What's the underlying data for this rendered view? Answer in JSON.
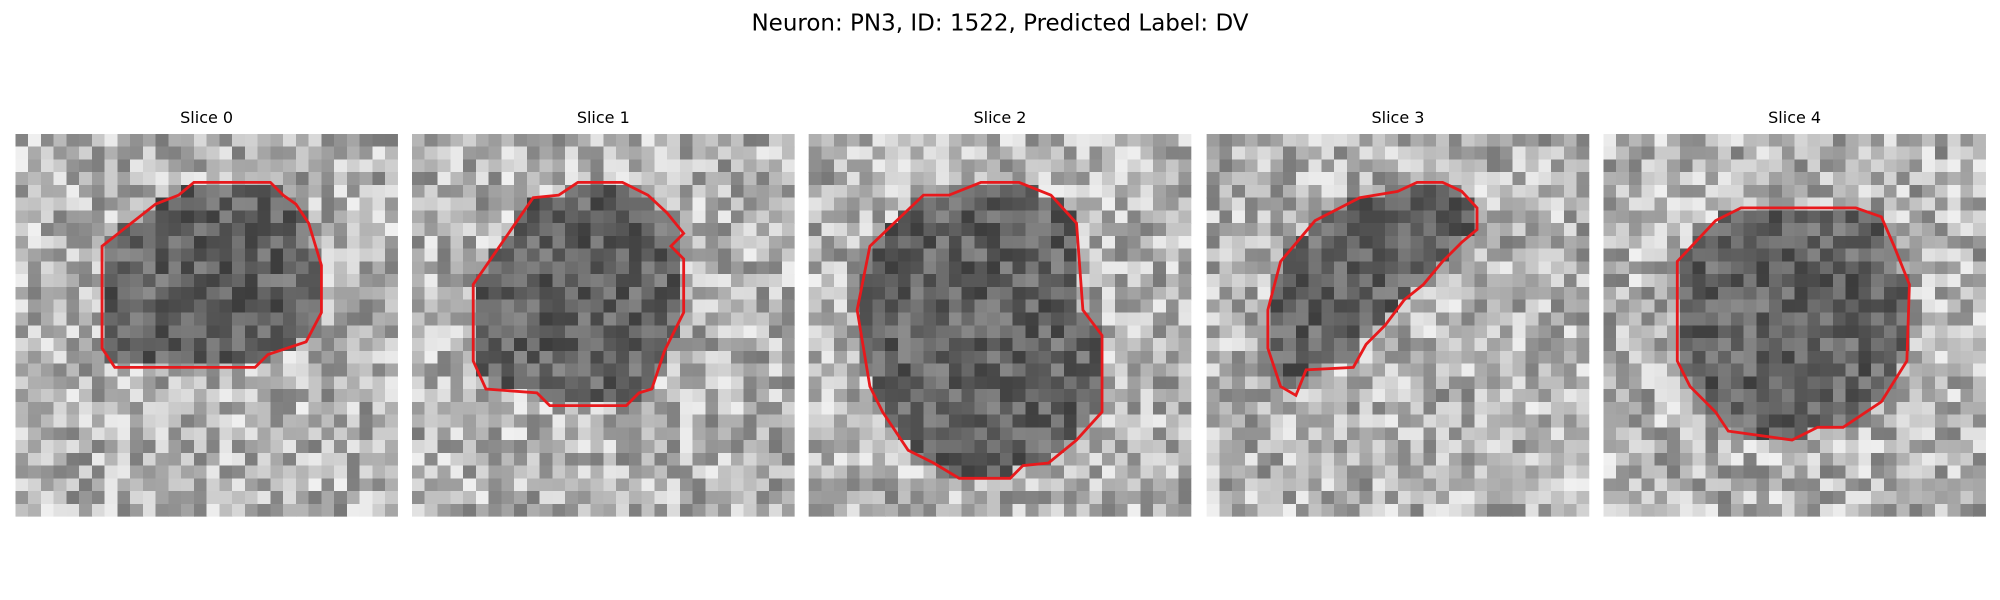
{
  "title": "Neuron: PN3, ID: 1522, Predicted Label: DV",
  "panels": [
    {
      "title": "Slice 0"
    },
    {
      "title": "Slice 1"
    },
    {
      "title": "Slice 2"
    },
    {
      "title": "Slice 3"
    },
    {
      "title": "Slice 4"
    }
  ]
}
